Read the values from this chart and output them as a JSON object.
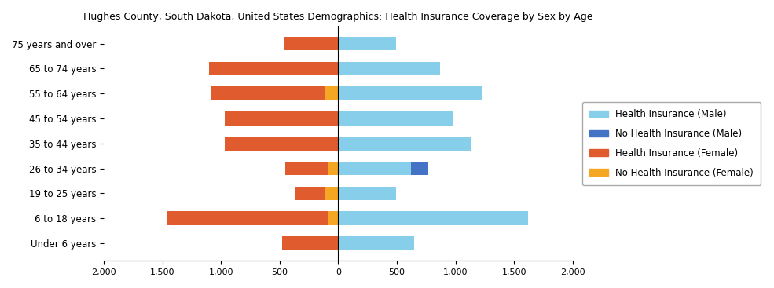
{
  "title": "Hughes County, South Dakota, United States Demographics: Health Insurance Coverage by Sex by Age",
  "age_groups": [
    "Under 6 years",
    "6 to 18 years",
    "19 to 25 years",
    "26 to 34 years",
    "35 to 44 years",
    "45 to 54 years",
    "55 to 64 years",
    "65 to 74 years",
    "75 years and over"
  ],
  "health_ins_male": [
    650,
    1620,
    490,
    620,
    1130,
    980,
    1230,
    870,
    490
  ],
  "no_health_ins_male": [
    0,
    0,
    0,
    150,
    0,
    0,
    0,
    0,
    0
  ],
  "health_ins_female": [
    480,
    1370,
    260,
    370,
    970,
    970,
    960,
    1100,
    460
  ],
  "no_health_ins_female": [
    0,
    90,
    110,
    80,
    0,
    0,
    120,
    0,
    0
  ],
  "color_health_ins_male": "#87CEEB",
  "color_no_health_ins_male": "#4472C4",
  "color_health_ins_female": "#E05C2E",
  "color_no_health_ins_female": "#F5A623",
  "xlim": [
    -2000,
    2000
  ],
  "xticks": [
    -2000,
    -1500,
    -1000,
    -500,
    0,
    500,
    1000,
    1500,
    2000
  ],
  "xticklabels": [
    "2,000",
    "1,500",
    "1,000",
    "500",
    "0",
    "500",
    "1,000",
    "1,500",
    "2,000"
  ],
  "legend_labels": [
    "Health Insurance (Male)",
    "No Health Insurance (Male)",
    "Health Insurance (Female)",
    "No Health Insurance (Female)"
  ],
  "legend_colors": [
    "#87CEEB",
    "#4472C4",
    "#E05C2E",
    "#F5A623"
  ],
  "bar_height": 0.55,
  "figsize": [
    9.85,
    3.67
  ],
  "dpi": 100
}
